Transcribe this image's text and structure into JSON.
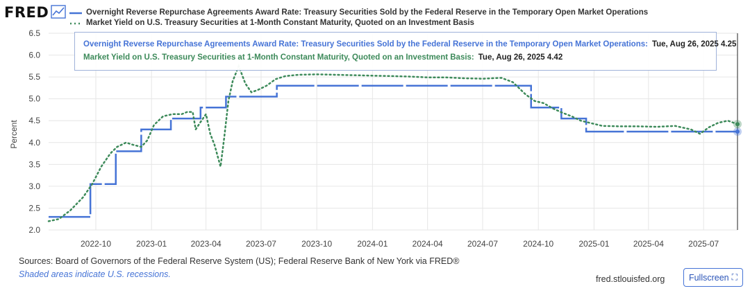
{
  "logo_text": "FRED",
  "source_text": "Sources: Board of Governors of the Federal Reserve System (US); Federal Reserve Bank of New York via FRED®",
  "recession_note": "Shaded areas indicate U.S. recessions.",
  "site_text": "fred.stlouisfed.org",
  "fullscreen_label": "Fullscreen",
  "icons": {
    "logo": "chart-line-icon",
    "fullscreen": "expand-icon"
  },
  "colors": {
    "series_a": "#4573d6",
    "series_b": "#3d8a5a"
  },
  "tooltip": {
    "series_a_name": "Overnight Reverse Repurchase Agreements Award Rate: Treasury Securities Sold by the Federal Reserve in the Temporary Open Market Operations:",
    "series_a_value": "Tue, Aug 26, 2025 4.25",
    "series_b_name": "Market Yield on U.S. Treasury Securities at 1-Month Constant Maturity, Quoted on an Investment Basis:",
    "series_b_value": "Tue, Aug 26, 2025 4.42"
  },
  "chart_data": {
    "type": "line",
    "title": "",
    "xlabel": "",
    "ylabel": "Percent",
    "ylim": [
      2.0,
      6.5
    ],
    "xlim": [
      "2022-07-15",
      "2025-08-26"
    ],
    "grid": true,
    "legend_placement": "top",
    "y_ticks": [
      "2.0",
      "2.5",
      "3.0",
      "3.5",
      "4.0",
      "4.5",
      "5.0",
      "5.5",
      "6.0",
      "6.5"
    ],
    "x_ticks": [
      {
        "date": "2022-10-01",
        "label": "2022-10"
      },
      {
        "date": "2023-01-01",
        "label": "2023-01"
      },
      {
        "date": "2023-04-01",
        "label": "2023-04"
      },
      {
        "date": "2023-07-01",
        "label": "2023-07"
      },
      {
        "date": "2023-10-01",
        "label": "2023-10"
      },
      {
        "date": "2024-01-01",
        "label": "2024-01"
      },
      {
        "date": "2024-04-01",
        "label": "2024-04"
      },
      {
        "date": "2024-07-01",
        "label": "2024-07"
      },
      {
        "date": "2024-10-01",
        "label": "2024-10"
      },
      {
        "date": "2025-01-01",
        "label": "2025-01"
      },
      {
        "date": "2025-04-01",
        "label": "2025-04"
      },
      {
        "date": "2025-07-01",
        "label": "2025-07"
      }
    ],
    "series": [
      {
        "name": "Overnight Reverse Repurchase Agreements Award Rate: Treasury Securities Sold by the Federal Reserve in the Temporary Open Market Operations",
        "style": "step-dashed",
        "points": [
          [
            "2022-07-15",
            2.3
          ],
          [
            "2022-09-22",
            3.05
          ],
          [
            "2022-11-03",
            3.8
          ],
          [
            "2022-12-15",
            4.3
          ],
          [
            "2023-02-02",
            4.55
          ],
          [
            "2023-03-23",
            4.8
          ],
          [
            "2023-05-04",
            5.05
          ],
          [
            "2023-07-27",
            5.3
          ],
          [
            "2024-09-19",
            4.8
          ],
          [
            "2024-11-08",
            4.55
          ],
          [
            "2024-12-19",
            4.25
          ],
          [
            "2025-08-26",
            4.25
          ]
        ]
      },
      {
        "name": "Market Yield on U.S. Treasury Securities at 1-Month Constant Maturity, Quoted on an Investment Basis",
        "style": "dotted",
        "points": [
          [
            "2022-07-15",
            2.2
          ],
          [
            "2022-08-01",
            2.25
          ],
          [
            "2022-08-20",
            2.45
          ],
          [
            "2022-09-10",
            2.75
          ],
          [
            "2022-09-25",
            3.05
          ],
          [
            "2022-10-10",
            3.45
          ],
          [
            "2022-10-25",
            3.75
          ],
          [
            "2022-11-05",
            3.9
          ],
          [
            "2022-11-20",
            4.0
          ],
          [
            "2022-12-01",
            3.95
          ],
          [
            "2022-12-15",
            3.9
          ],
          [
            "2022-12-25",
            4.05
          ],
          [
            "2023-01-05",
            4.4
          ],
          [
            "2023-01-20",
            4.6
          ],
          [
            "2023-02-05",
            4.65
          ],
          [
            "2023-02-20",
            4.65
          ],
          [
            "2023-03-01",
            4.7
          ],
          [
            "2023-03-10",
            4.7
          ],
          [
            "2023-03-15",
            4.3
          ],
          [
            "2023-03-22",
            4.45
          ],
          [
            "2023-04-01",
            4.65
          ],
          [
            "2023-04-08",
            4.2
          ],
          [
            "2023-04-15",
            3.95
          ],
          [
            "2023-04-20",
            3.7
          ],
          [
            "2023-04-25",
            3.45
          ],
          [
            "2023-05-01",
            4.1
          ],
          [
            "2023-05-08",
            4.95
          ],
          [
            "2023-05-15",
            5.4
          ],
          [
            "2023-05-25",
            5.75
          ],
          [
            "2023-06-05",
            5.35
          ],
          [
            "2023-06-15",
            5.15
          ],
          [
            "2023-06-25",
            5.2
          ],
          [
            "2023-07-10",
            5.3
          ],
          [
            "2023-07-25",
            5.45
          ],
          [
            "2023-08-10",
            5.52
          ],
          [
            "2023-09-01",
            5.55
          ],
          [
            "2023-10-01",
            5.56
          ],
          [
            "2023-11-01",
            5.55
          ],
          [
            "2023-12-01",
            5.54
          ],
          [
            "2024-01-01",
            5.53
          ],
          [
            "2024-02-01",
            5.52
          ],
          [
            "2024-03-01",
            5.51
          ],
          [
            "2024-04-01",
            5.49
          ],
          [
            "2024-05-01",
            5.49
          ],
          [
            "2024-06-01",
            5.47
          ],
          [
            "2024-07-01",
            5.46
          ],
          [
            "2024-08-01",
            5.48
          ],
          [
            "2024-08-20",
            5.38
          ],
          [
            "2024-09-10",
            5.1
          ],
          [
            "2024-09-25",
            4.95
          ],
          [
            "2024-10-10",
            4.9
          ],
          [
            "2024-10-25",
            4.78
          ],
          [
            "2024-11-10",
            4.68
          ],
          [
            "2024-11-25",
            4.6
          ],
          [
            "2024-12-10",
            4.5
          ],
          [
            "2024-12-25",
            4.45
          ],
          [
            "2025-01-15",
            4.38
          ],
          [
            "2025-02-15",
            4.37
          ],
          [
            "2025-03-15",
            4.37
          ],
          [
            "2025-04-15",
            4.36
          ],
          [
            "2025-05-15",
            4.38
          ],
          [
            "2025-06-10",
            4.3
          ],
          [
            "2025-06-25",
            4.2
          ],
          [
            "2025-07-10",
            4.35
          ],
          [
            "2025-07-25",
            4.45
          ],
          [
            "2025-08-10",
            4.5
          ],
          [
            "2025-08-26",
            4.42
          ]
        ]
      }
    ]
  }
}
